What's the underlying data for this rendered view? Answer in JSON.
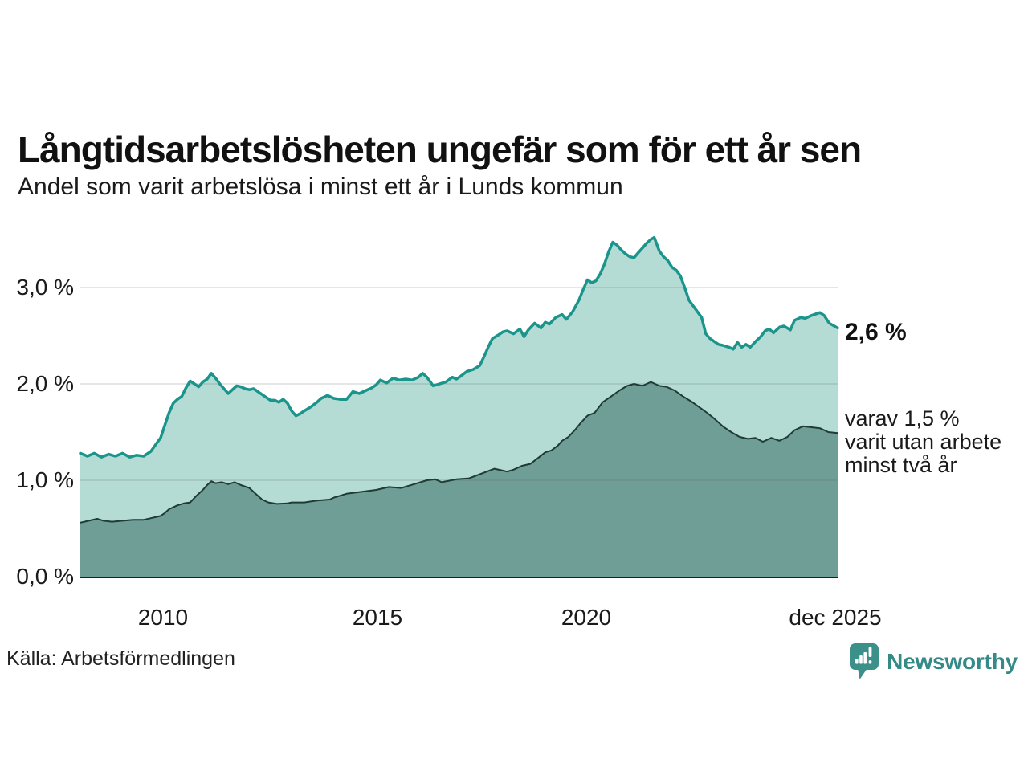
{
  "source": "Källa: Arbetsförmedlingen",
  "branding": {
    "name": "Newsworthy",
    "color": "#338a86",
    "icon": "bar-chart-speech-bubble-icon"
  },
  "annotations": {
    "latest_total": "2,6 %",
    "secondary_lines": [
      "varav 1,5 %",
      "varit utan arbete",
      "minst två år"
    ]
  },
  "chart_data": {
    "type": "area",
    "title": "Långtidsarbetslösheten ungefär som för ett år sen",
    "subtitle": "Andel som varit arbetslösa i minst ett år i Lunds kommun",
    "unit": "%",
    "grid": "horizontal",
    "x_axis": {
      "range": [
        2008,
        2025.92
      ],
      "ticks": [
        {
          "x": 2010,
          "label": "2010"
        },
        {
          "x": 2015,
          "label": "2015"
        },
        {
          "x": 2020,
          "label": "2020"
        },
        {
          "x": 2025.92,
          "label": "dec 2025"
        }
      ]
    },
    "y_axis": {
      "range": [
        0,
        3.6
      ],
      "gridlines": [
        1,
        2,
        3
      ],
      "ticks": [
        {
          "v": 0,
          "label": "0,0 %"
        },
        {
          "v": 1,
          "label": "1,0 %"
        },
        {
          "v": 2,
          "label": "2,0 %"
        },
        {
          "v": 3,
          "label": "3,0 %"
        }
      ]
    },
    "series": [
      {
        "name": "Andel arbetslösa minst ett år",
        "latest_value": 2.6,
        "latest_label": "2,6 %",
        "color": "#1b948b",
        "fill": "#b4dcd5",
        "stroke_width": 3.5,
        "values": [
          [
            2008.0,
            1.28
          ],
          [
            2008.17,
            1.25
          ],
          [
            2008.33,
            1.28
          ],
          [
            2008.5,
            1.24
          ],
          [
            2008.67,
            1.27
          ],
          [
            2008.83,
            1.25
          ],
          [
            2009.0,
            1.28
          ],
          [
            2009.17,
            1.24
          ],
          [
            2009.33,
            1.26
          ],
          [
            2009.5,
            1.25
          ],
          [
            2009.67,
            1.3
          ],
          [
            2009.8,
            1.38
          ],
          [
            2009.9,
            1.44
          ],
          [
            2010.0,
            1.57
          ],
          [
            2010.1,
            1.7
          ],
          [
            2010.2,
            1.8
          ],
          [
            2010.3,
            1.84
          ],
          [
            2010.4,
            1.87
          ],
          [
            2010.5,
            1.96
          ],
          [
            2010.6,
            2.03
          ],
          [
            2010.7,
            2.0
          ],
          [
            2010.8,
            1.97
          ],
          [
            2010.9,
            2.02
          ],
          [
            2011.0,
            2.05
          ],
          [
            2011.1,
            2.11
          ],
          [
            2011.2,
            2.06
          ],
          [
            2011.3,
            2.0
          ],
          [
            2011.4,
            1.95
          ],
          [
            2011.5,
            1.9
          ],
          [
            2011.6,
            1.94
          ],
          [
            2011.7,
            1.98
          ],
          [
            2011.8,
            1.97
          ],
          [
            2011.9,
            1.95
          ],
          [
            2012.0,
            1.94
          ],
          [
            2012.1,
            1.95
          ],
          [
            2012.2,
            1.92
          ],
          [
            2012.3,
            1.89
          ],
          [
            2012.4,
            1.86
          ],
          [
            2012.5,
            1.83
          ],
          [
            2012.6,
            1.83
          ],
          [
            2012.7,
            1.81
          ],
          [
            2012.8,
            1.84
          ],
          [
            2012.9,
            1.8
          ],
          [
            2013.0,
            1.72
          ],
          [
            2013.1,
            1.67
          ],
          [
            2013.2,
            1.69
          ],
          [
            2013.3,
            1.72
          ],
          [
            2013.45,
            1.76
          ],
          [
            2013.6,
            1.81
          ],
          [
            2013.7,
            1.85
          ],
          [
            2013.85,
            1.88
          ],
          [
            2014.0,
            1.85
          ],
          [
            2014.15,
            1.84
          ],
          [
            2014.3,
            1.84
          ],
          [
            2014.45,
            1.92
          ],
          [
            2014.6,
            1.9
          ],
          [
            2014.75,
            1.93
          ],
          [
            2014.9,
            1.96
          ],
          [
            2015.0,
            1.99
          ],
          [
            2015.1,
            2.04
          ],
          [
            2015.25,
            2.01
          ],
          [
            2015.4,
            2.06
          ],
          [
            2015.55,
            2.04
          ],
          [
            2015.7,
            2.05
          ],
          [
            2015.85,
            2.04
          ],
          [
            2016.0,
            2.07
          ],
          [
            2016.1,
            2.11
          ],
          [
            2016.2,
            2.07
          ],
          [
            2016.35,
            1.98
          ],
          [
            2016.5,
            2.0
          ],
          [
            2016.65,
            2.02
          ],
          [
            2016.8,
            2.07
          ],
          [
            2016.9,
            2.05
          ],
          [
            2017.0,
            2.08
          ],
          [
            2017.15,
            2.13
          ],
          [
            2017.3,
            2.15
          ],
          [
            2017.45,
            2.19
          ],
          [
            2017.55,
            2.28
          ],
          [
            2017.65,
            2.38
          ],
          [
            2017.75,
            2.47
          ],
          [
            2017.9,
            2.51
          ],
          [
            2018.0,
            2.54
          ],
          [
            2018.1,
            2.55
          ],
          [
            2018.25,
            2.52
          ],
          [
            2018.4,
            2.57
          ],
          [
            2018.5,
            2.49
          ],
          [
            2018.6,
            2.56
          ],
          [
            2018.75,
            2.63
          ],
          [
            2018.9,
            2.58
          ],
          [
            2019.0,
            2.64
          ],
          [
            2019.1,
            2.62
          ],
          [
            2019.25,
            2.69
          ],
          [
            2019.4,
            2.72
          ],
          [
            2019.5,
            2.67
          ],
          [
            2019.65,
            2.75
          ],
          [
            2019.8,
            2.87
          ],
          [
            2019.9,
            2.98
          ],
          [
            2020.0,
            3.08
          ],
          [
            2020.1,
            3.05
          ],
          [
            2020.2,
            3.07
          ],
          [
            2020.3,
            3.14
          ],
          [
            2020.4,
            3.24
          ],
          [
            2020.5,
            3.37
          ],
          [
            2020.6,
            3.47
          ],
          [
            2020.7,
            3.44
          ],
          [
            2020.8,
            3.39
          ],
          [
            2020.9,
            3.35
          ],
          [
            2021.0,
            3.32
          ],
          [
            2021.1,
            3.31
          ],
          [
            2021.2,
            3.36
          ],
          [
            2021.3,
            3.41
          ],
          [
            2021.4,
            3.46
          ],
          [
            2021.5,
            3.5
          ],
          [
            2021.58,
            3.52
          ],
          [
            2021.7,
            3.38
          ],
          [
            2021.8,
            3.32
          ],
          [
            2021.9,
            3.28
          ],
          [
            2022.0,
            3.21
          ],
          [
            2022.1,
            3.18
          ],
          [
            2022.2,
            3.12
          ],
          [
            2022.3,
            3.0
          ],
          [
            2022.4,
            2.87
          ],
          [
            2022.5,
            2.81
          ],
          [
            2022.6,
            2.75
          ],
          [
            2022.7,
            2.69
          ],
          [
            2022.8,
            2.52
          ],
          [
            2022.9,
            2.47
          ],
          [
            2023.0,
            2.44
          ],
          [
            2023.1,
            2.41
          ],
          [
            2023.2,
            2.4
          ],
          [
            2023.35,
            2.38
          ],
          [
            2023.45,
            2.36
          ],
          [
            2023.55,
            2.43
          ],
          [
            2023.65,
            2.38
          ],
          [
            2023.75,
            2.41
          ],
          [
            2023.85,
            2.38
          ],
          [
            2024.0,
            2.45
          ],
          [
            2024.1,
            2.49
          ],
          [
            2024.2,
            2.55
          ],
          [
            2024.3,
            2.57
          ],
          [
            2024.4,
            2.53
          ],
          [
            2024.55,
            2.59
          ],
          [
            2024.65,
            2.6
          ],
          [
            2024.8,
            2.56
          ],
          [
            2024.9,
            2.66
          ],
          [
            2025.05,
            2.69
          ],
          [
            2025.15,
            2.68
          ],
          [
            2025.3,
            2.71
          ],
          [
            2025.5,
            2.74
          ],
          [
            2025.6,
            2.71
          ],
          [
            2025.72,
            2.63
          ],
          [
            2025.92,
            2.58
          ]
        ]
      },
      {
        "name": "Varav utan arbete minst två år",
        "latest_value": 1.5,
        "latest_label": "1,5 %",
        "color": "#1e3b35",
        "fill": "#6f9e96",
        "stroke_width": 2,
        "values": [
          [
            2008.0,
            0.56
          ],
          [
            2008.2,
            0.58
          ],
          [
            2008.4,
            0.6
          ],
          [
            2008.55,
            0.58
          ],
          [
            2008.75,
            0.57
          ],
          [
            2009.0,
            0.58
          ],
          [
            2009.25,
            0.59
          ],
          [
            2009.5,
            0.59
          ],
          [
            2009.7,
            0.61
          ],
          [
            2009.9,
            0.63
          ],
          [
            2010.0,
            0.66
          ],
          [
            2010.1,
            0.7
          ],
          [
            2010.3,
            0.74
          ],
          [
            2010.45,
            0.76
          ],
          [
            2010.6,
            0.77
          ],
          [
            2010.75,
            0.84
          ],
          [
            2010.9,
            0.9
          ],
          [
            2011.0,
            0.95
          ],
          [
            2011.1,
            0.99
          ],
          [
            2011.2,
            0.97
          ],
          [
            2011.35,
            0.98
          ],
          [
            2011.5,
            0.96
          ],
          [
            2011.65,
            0.98
          ],
          [
            2011.8,
            0.95
          ],
          [
            2012.0,
            0.92
          ],
          [
            2012.2,
            0.84
          ],
          [
            2012.3,
            0.8
          ],
          [
            2012.45,
            0.77
          ],
          [
            2012.65,
            0.755
          ],
          [
            2012.9,
            0.76
          ],
          [
            2013.0,
            0.77
          ],
          [
            2013.3,
            0.77
          ],
          [
            2013.6,
            0.79
          ],
          [
            2013.9,
            0.8
          ],
          [
            2014.0,
            0.82
          ],
          [
            2014.3,
            0.86
          ],
          [
            2014.65,
            0.88
          ],
          [
            2015.0,
            0.9
          ],
          [
            2015.3,
            0.93
          ],
          [
            2015.6,
            0.92
          ],
          [
            2015.9,
            0.96
          ],
          [
            2016.2,
            1.0
          ],
          [
            2016.4,
            1.01
          ],
          [
            2016.55,
            0.98
          ],
          [
            2016.9,
            1.01
          ],
          [
            2017.2,
            1.02
          ],
          [
            2017.5,
            1.07
          ],
          [
            2017.8,
            1.12
          ],
          [
            2018.0,
            1.1
          ],
          [
            2018.1,
            1.09
          ],
          [
            2018.25,
            1.11
          ],
          [
            2018.45,
            1.15
          ],
          [
            2018.65,
            1.17
          ],
          [
            2018.8,
            1.22
          ],
          [
            2019.0,
            1.29
          ],
          [
            2019.15,
            1.31
          ],
          [
            2019.3,
            1.36
          ],
          [
            2019.4,
            1.41
          ],
          [
            2019.55,
            1.45
          ],
          [
            2019.7,
            1.52
          ],
          [
            2019.85,
            1.6
          ],
          [
            2020.0,
            1.67
          ],
          [
            2020.17,
            1.7
          ],
          [
            2020.36,
            1.81
          ],
          [
            2020.56,
            1.87
          ],
          [
            2020.75,
            1.93
          ],
          [
            2020.94,
            1.98
          ],
          [
            2021.1,
            2.0
          ],
          [
            2021.3,
            1.98
          ],
          [
            2021.5,
            2.02
          ],
          [
            2021.7,
            1.98
          ],
          [
            2021.87,
            1.97
          ],
          [
            2022.07,
            1.93
          ],
          [
            2022.26,
            1.87
          ],
          [
            2022.45,
            1.82
          ],
          [
            2022.64,
            1.76
          ],
          [
            2022.83,
            1.7
          ],
          [
            2023.0,
            1.64
          ],
          [
            2023.2,
            1.56
          ],
          [
            2023.4,
            1.5
          ],
          [
            2023.6,
            1.45
          ],
          [
            2023.8,
            1.43
          ],
          [
            2023.97,
            1.44
          ],
          [
            2024.15,
            1.4
          ],
          [
            2024.35,
            1.44
          ],
          [
            2024.54,
            1.41
          ],
          [
            2024.73,
            1.45
          ],
          [
            2024.9,
            1.52
          ],
          [
            2025.1,
            1.56
          ],
          [
            2025.3,
            1.55
          ],
          [
            2025.5,
            1.54
          ],
          [
            2025.7,
            1.5
          ],
          [
            2025.92,
            1.49
          ]
        ]
      }
    ]
  }
}
